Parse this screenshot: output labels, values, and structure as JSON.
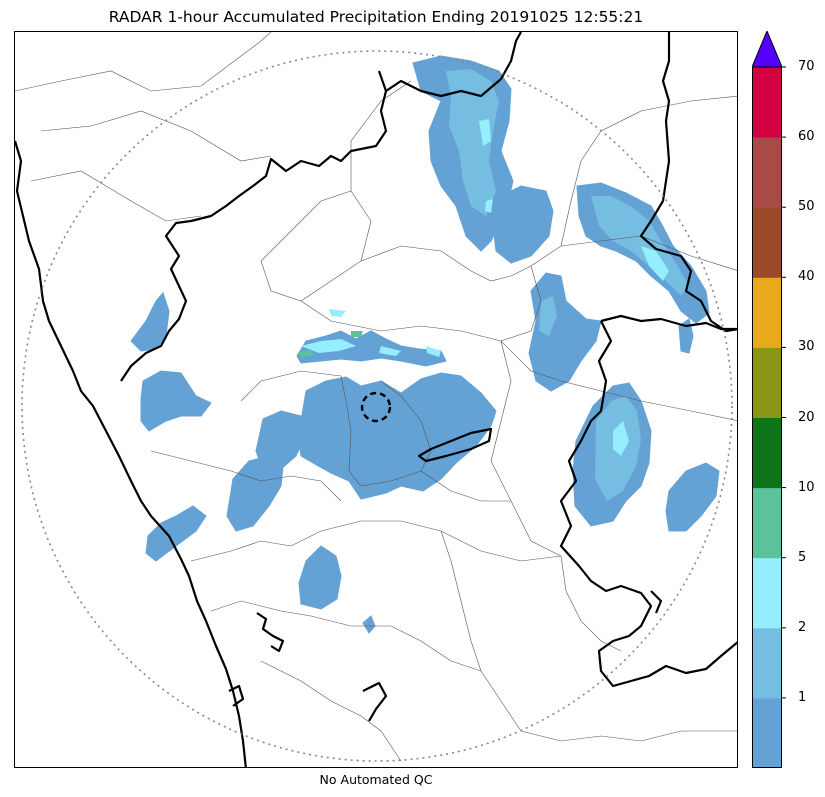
{
  "title": "RADAR 1-hour Accumulated Precipitation Ending 20191025 12:55:21",
  "footer": "No Automated QC",
  "map": {
    "range_ring": "dotted",
    "radar_marker": "dashed-circle",
    "boundary_style": {
      "state": "#000000",
      "district": "#555555"
    }
  },
  "legend": {
    "extend": "max",
    "overflow_color": "#5500ff",
    "levels": [
      {
        "label": "",
        "color": "#64a2d5"
      },
      {
        "label": "1",
        "color": "#76bde2"
      },
      {
        "label": "2",
        "color": "#94eefd"
      },
      {
        "label": "5",
        "color": "#5bc39b"
      },
      {
        "label": "10",
        "color": "#0d7419"
      },
      {
        "label": "20",
        "color": "#8b9616"
      },
      {
        "label": "30",
        "color": "#e7aa1b"
      },
      {
        "label": "40",
        "color": "#9a4c2a"
      },
      {
        "label": "50",
        "color": "#a84a45"
      },
      {
        "label": "60",
        "color": "#d30041"
      },
      {
        "label": "70",
        "color": ""
      }
    ]
  }
}
